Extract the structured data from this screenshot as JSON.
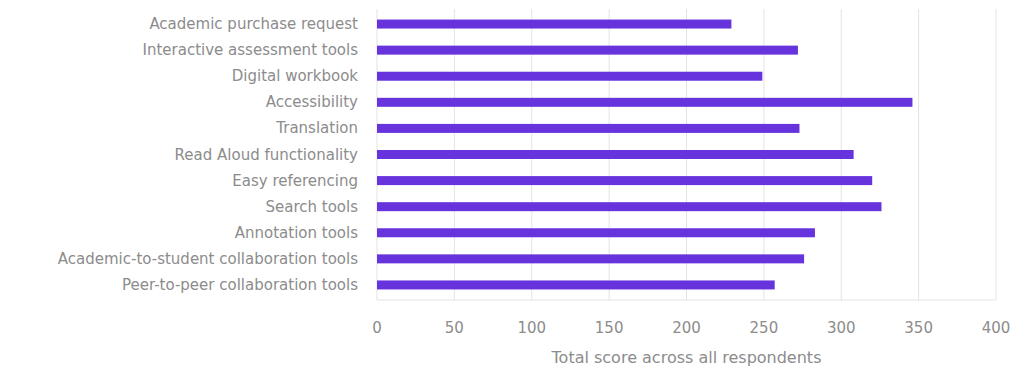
{
  "chart_data": {
    "type": "bar",
    "orientation": "horizontal",
    "x_label": "Total score across all respondents",
    "categories": [
      "Academic purchase request",
      "Interactive assessment tools",
      "Digital workbook",
      "Accessibility",
      "Translation",
      "Read Aloud functionality",
      "Easy referencing",
      "Search tools",
      "Annotation tools",
      "Academic-to-student collaboration tools",
      "Peer-to-peer collaboration tools"
    ],
    "values": [
      229,
      272,
      249,
      346,
      273,
      308,
      320,
      326,
      283,
      276,
      257
    ],
    "color": "#6633dd",
    "xlim": [
      0,
      400
    ],
    "xticks": [
      0,
      50,
      100,
      150,
      200,
      250,
      300,
      350,
      400
    ],
    "grid": true
  }
}
